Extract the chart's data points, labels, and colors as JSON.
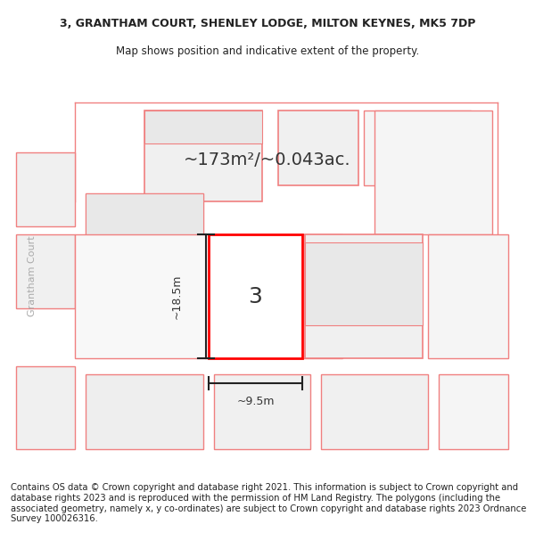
{
  "title_line1": "3, GRANTHAM COURT, SHENLEY LODGE, MILTON KEYNES, MK5 7DP",
  "title_line2": "Map shows position and indicative extent of the property.",
  "area_text": "~173m²/~0.043ac.",
  "property_number": "3",
  "dim_height": "~18.5m",
  "dim_width": "~9.5m",
  "street_label": "Grantham Court",
  "footer_text": "Contains OS data © Crown copyright and database right 2021. This information is subject to Crown copyright and database rights 2023 and is reproduced with the permission of HM Land Registry. The polygons (including the associated geometry, namely x, y co-ordinates) are subject to Crown copyright and database rights 2023 Ordnance Survey 100026316.",
  "bg_color": "#ffffff",
  "map_bg": "#ffffff",
  "polygon_color_main": "#ff0000",
  "polygon_color_surrounding": "#f08080",
  "shading_color": "#e8e8e8",
  "title_fontsize": 9,
  "footer_fontsize": 7.2
}
